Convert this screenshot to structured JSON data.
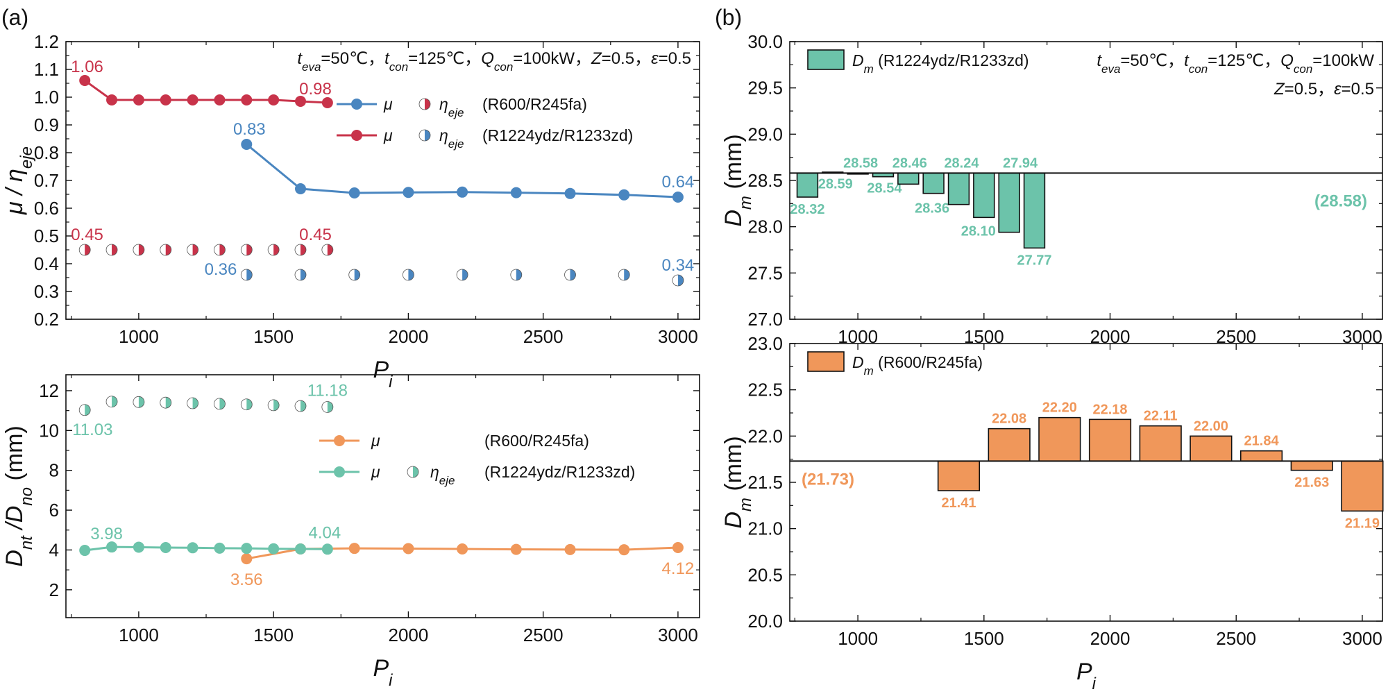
{
  "colors": {
    "red": "#c8334a",
    "blue": "#4a86c0",
    "teal": "#6cc3aa",
    "orange": "#f0975a",
    "bar_stroke": "#111111"
  },
  "chart_data": [
    {
      "id": "a_top",
      "panel_label": "(a)",
      "type": "line",
      "xlabel": "P",
      "xlabel_sub": "i",
      "ylabel": "μ / η",
      "ylabel_sub": "eje",
      "xlim": [
        730,
        3080
      ],
      "ylim": [
        0.2,
        1.2
      ],
      "xticks": [
        "1000",
        "1500",
        "2000",
        "2500",
        "3000"
      ],
      "yticks": [
        "0.2",
        "0.3",
        "0.4",
        "0.5",
        "0.6",
        "0.7",
        "0.8",
        "0.9",
        "1.0",
        "1.1",
        "1.2"
      ],
      "conditions": "t_eva=50℃，t_con=125℃，Q_con=100kW，Z=0.5，ε=0.5",
      "legend": [
        {
          "line": "μ",
          "marker": "η",
          "marker_sub": "eje",
          "fluid": "(R600/R245fa)",
          "color": "blue",
          "half_color": "red"
        },
        {
          "line": "μ",
          "marker": "η",
          "marker_sub": "eje",
          "fluid": "(R1224ydz/R1233zd)",
          "color": "red",
          "half_color": "blue"
        }
      ],
      "series": [
        {
          "name": "μ (R1224ydz/R1233zd)",
          "style": "line",
          "color": "red",
          "x": [
            800,
            900,
            1000,
            1100,
            1200,
            1300,
            1400,
            1500,
            1600,
            1700
          ],
          "y": [
            1.06,
            0.99,
            0.99,
            0.99,
            0.99,
            0.99,
            0.99,
            0.99,
            0.985,
            0.98
          ]
        },
        {
          "name": "μ (R600/R245fa)",
          "style": "line",
          "color": "blue",
          "x": [
            1400,
            1600,
            1800,
            2000,
            2200,
            2400,
            2600,
            2800,
            3000
          ],
          "y": [
            0.83,
            0.67,
            0.655,
            0.657,
            0.658,
            0.656,
            0.653,
            0.648,
            0.64
          ]
        },
        {
          "name": "η_eje (R1224ydz/R1233zd)",
          "style": "half",
          "color": "red",
          "x": [
            800,
            900,
            1000,
            1100,
            1200,
            1300,
            1400,
            1500,
            1600,
            1700
          ],
          "y": [
            0.45,
            0.45,
            0.45,
            0.45,
            0.45,
            0.45,
            0.45,
            0.45,
            0.45,
            0.45
          ]
        },
        {
          "name": "η_eje (R600/R245fa)",
          "style": "half",
          "color": "blue",
          "x": [
            1400,
            1600,
            1800,
            2000,
            2200,
            2400,
            2600,
            2800,
            3000
          ],
          "y": [
            0.36,
            0.36,
            0.36,
            0.36,
            0.36,
            0.36,
            0.36,
            0.36,
            0.34
          ]
        }
      ],
      "annotations": [
        {
          "text": "1.06",
          "x": 800,
          "y": 1.06,
          "color": "red",
          "anchor": "start",
          "dx": -20,
          "dy": -12
        },
        {
          "text": "0.98",
          "x": 1700,
          "y": 0.98,
          "color": "red",
          "anchor": "end",
          "dx": 6,
          "dy": -12
        },
        {
          "text": "0.45",
          "x": 800,
          "y": 0.45,
          "color": "red",
          "anchor": "start",
          "dx": -20,
          "dy": -14
        },
        {
          "text": "0.45",
          "x": 1700,
          "y": 0.45,
          "color": "red",
          "anchor": "end",
          "dx": 6,
          "dy": -14
        },
        {
          "text": "0.83",
          "x": 1400,
          "y": 0.83,
          "color": "blue",
          "anchor": "middle",
          "dx": 4,
          "dy": -14
        },
        {
          "text": "0.64",
          "x": 3000,
          "y": 0.64,
          "color": "blue",
          "anchor": "middle",
          "dx": 0,
          "dy": -14
        },
        {
          "text": "0.36",
          "x": 1400,
          "y": 0.36,
          "color": "blue",
          "anchor": "end",
          "dx": -14,
          "dy": 0
        },
        {
          "text": "0.34",
          "x": 3000,
          "y": 0.34,
          "color": "blue",
          "anchor": "middle",
          "dx": 0,
          "dy": -14
        }
      ]
    },
    {
      "id": "a_bottom",
      "type": "line",
      "xlabel": "P",
      "xlabel_sub": "i",
      "ylabel": "D",
      "ylabel_sub": "nt",
      "ylabel_mid": " /D",
      "ylabel_sub2": "no",
      "ylabel_tail": " (mm)",
      "xlim": [
        730,
        3080
      ],
      "ylim": [
        0.6,
        12.8
      ],
      "xticks": [
        "1000",
        "1500",
        "2000",
        "2500",
        "3000"
      ],
      "yticks": [
        "2",
        "4",
        "6",
        "8",
        "10",
        "12"
      ],
      "legend": [
        {
          "line": "μ",
          "marker": "",
          "marker_sub": "",
          "fluid": "(R600/R245fa)",
          "color": "orange",
          "half_color": ""
        },
        {
          "line": "μ",
          "marker": "η",
          "marker_sub": "eje",
          "fluid": "(R1224ydz/R1233zd)",
          "color": "teal",
          "half_color": "teal"
        }
      ],
      "series": [
        {
          "name": "R600/R245fa",
          "style": "line",
          "color": "orange",
          "x": [
            1400,
            1600,
            1800,
            2000,
            2200,
            2400,
            2600,
            2800,
            3000
          ],
          "y": [
            3.56,
            4.05,
            4.08,
            4.07,
            4.05,
            4.03,
            4.02,
            4.01,
            4.12
          ]
        },
        {
          "name": "R1224ydz/R1233zd (D_nt)",
          "style": "line",
          "color": "teal",
          "x": [
            800,
            900,
            1000,
            1100,
            1200,
            1300,
            1400,
            1500,
            1600,
            1700
          ],
          "y": [
            3.98,
            4.15,
            4.14,
            4.12,
            4.11,
            4.09,
            4.08,
            4.06,
            4.05,
            4.04
          ]
        },
        {
          "name": "R1224ydz/R1233zd (D_no)",
          "style": "half",
          "color": "teal",
          "x": [
            800,
            900,
            1000,
            1100,
            1200,
            1300,
            1400,
            1500,
            1600,
            1700
          ],
          "y": [
            11.03,
            11.45,
            11.43,
            11.4,
            11.37,
            11.34,
            11.31,
            11.27,
            11.23,
            11.18
          ]
        }
      ],
      "annotations": [
        {
          "text": "11.03",
          "x": 800,
          "y": 11.03,
          "color": "teal",
          "anchor": "start",
          "dx": -18,
          "dy": 36
        },
        {
          "text": "11.18",
          "x": 1700,
          "y": 11.18,
          "color": "teal",
          "anchor": "middle",
          "dx": 0,
          "dy": -16
        },
        {
          "text": "3.98",
          "x": 800,
          "y": 3.98,
          "color": "teal",
          "anchor": "start",
          "dx": 8,
          "dy": -16
        },
        {
          "text": "4.04",
          "x": 1700,
          "y": 4.04,
          "color": "teal",
          "anchor": "middle",
          "dx": -4,
          "dy": -16
        },
        {
          "text": "3.56",
          "x": 1400,
          "y": 3.56,
          "color": "orange",
          "anchor": "middle",
          "dx": 0,
          "dy": 38
        },
        {
          "text": "4.12",
          "x": 3000,
          "y": 4.12,
          "color": "orange",
          "anchor": "middle",
          "dx": 0,
          "dy": 38
        }
      ]
    },
    {
      "id": "b_top",
      "panel_label": "(b)",
      "type": "bar",
      "xlabel": "",
      "ylabel": "D",
      "ylabel_sub": "m",
      "ylabel_tail": " (mm)",
      "xlim": [
        730,
        3080
      ],
      "ylim": [
        27.0,
        30.0
      ],
      "xticks": [
        "1000",
        "1500",
        "2000",
        "2500",
        "3000"
      ],
      "yticks": [
        "27.0",
        "27.5",
        "28.0",
        "28.5",
        "29.0",
        "29.5",
        "30.0"
      ],
      "baseline": 28.58,
      "baseline_label": "(28.58)",
      "color": "teal",
      "legend_main": "D",
      "legend_sub": "m",
      "legend_fluid": " (R1224ydz/R1233zd)",
      "conditions_line1": "t_eva=50℃，t_con=125℃，Q_con=100kW",
      "conditions_line2": "Z=0.5，ε=0.5",
      "x": [
        800,
        900,
        1000,
        1100,
        1200,
        1300,
        1400,
        1500,
        1600,
        1700
      ],
      "values": [
        28.32,
        28.59,
        28.58,
        28.54,
        28.46,
        28.36,
        28.24,
        28.1,
        27.94,
        27.77
      ],
      "labels": [
        "28.32",
        "28.59",
        "28.58",
        "28.54",
        "28.46",
        "28.36",
        "28.24",
        "28.10",
        "27.94",
        "27.77"
      ]
    },
    {
      "id": "b_bottom",
      "type": "bar",
      "xlabel": "P",
      "xlabel_sub": "i",
      "ylabel": "D",
      "ylabel_sub": "m",
      "ylabel_tail": " (mm)",
      "xlim": [
        730,
        3080
      ],
      "ylim": [
        20.0,
        23.0
      ],
      "xticks": [
        "1000",
        "1500",
        "2000",
        "2500",
        "3000"
      ],
      "yticks": [
        "20.0",
        "20.5",
        "21.0",
        "21.5",
        "22.0",
        "22.5",
        "23.0"
      ],
      "baseline": 21.73,
      "baseline_label": "(21.73)",
      "color": "orange",
      "legend_main": "D",
      "legend_sub": "m",
      "legend_fluid": " (R600/R245fa)",
      "x": [
        1400,
        1600,
        1800,
        2000,
        2200,
        2400,
        2600,
        2800,
        3000
      ],
      "values": [
        21.41,
        22.08,
        22.2,
        22.18,
        22.11,
        22.0,
        21.84,
        21.63,
        21.19
      ],
      "labels": [
        "21.41",
        "22.08",
        "22.20",
        "22.18",
        "22.11",
        "22.00",
        "21.84",
        "21.63",
        "21.19"
      ]
    }
  ]
}
